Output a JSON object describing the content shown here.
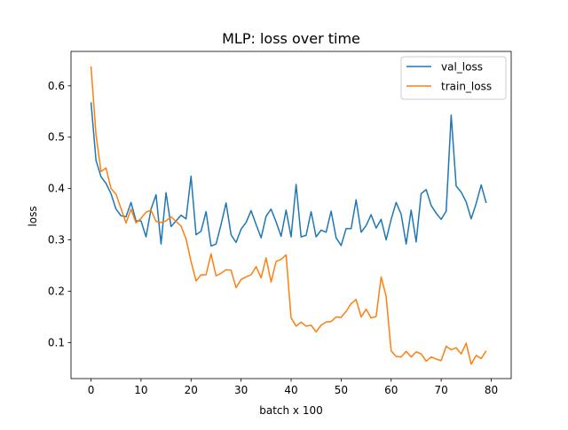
{
  "chart_data": {
    "type": "line",
    "title": "MLP: loss over time",
    "xlabel": "batch x 100",
    "ylabel": "loss",
    "xlim": [
      -4,
      84
    ],
    "ylim": [
      0.03,
      0.667
    ],
    "xticks": [
      0,
      10,
      20,
      30,
      40,
      50,
      60,
      70,
      80
    ],
    "yticks": [
      0.1,
      0.2,
      0.3,
      0.4,
      0.5,
      0.6
    ],
    "grid": false,
    "legend_position": "top-right",
    "x": [
      0,
      1,
      2,
      3,
      4,
      5,
      6,
      7,
      8,
      9,
      10,
      11,
      12,
      13,
      14,
      15,
      16,
      17,
      18,
      19,
      20,
      21,
      22,
      23,
      24,
      25,
      26,
      27,
      28,
      29,
      30,
      31,
      32,
      33,
      34,
      35,
      36,
      37,
      38,
      39,
      40,
      41,
      42,
      43,
      44,
      45,
      46,
      47,
      48,
      49,
      50,
      51,
      52,
      53,
      54,
      55,
      56,
      57,
      58,
      59,
      60,
      61,
      62,
      63,
      64,
      65,
      66,
      67,
      68,
      69,
      70,
      71,
      72,
      73,
      74,
      75,
      76,
      77,
      78,
      79
    ],
    "series": [
      {
        "name": "val_loss",
        "color": "#1f77b4",
        "values": [
          0.568,
          0.455,
          0.423,
          0.41,
          0.39,
          0.36,
          0.347,
          0.345,
          0.373,
          0.337,
          0.337,
          0.306,
          0.36,
          0.388,
          0.292,
          0.392,
          0.326,
          0.337,
          0.348,
          0.341,
          0.424,
          0.31,
          0.317,
          0.355,
          0.288,
          0.292,
          0.33,
          0.372,
          0.31,
          0.295,
          0.321,
          0.334,
          0.357,
          0.33,
          0.304,
          0.346,
          0.36,
          0.335,
          0.307,
          0.358,
          0.306,
          0.408,
          0.306,
          0.309,
          0.355,
          0.306,
          0.319,
          0.315,
          0.356,
          0.304,
          0.289,
          0.322,
          0.322,
          0.378,
          0.315,
          0.328,
          0.349,
          0.323,
          0.34,
          0.3,
          0.34,
          0.373,
          0.35,
          0.292,
          0.358,
          0.296,
          0.39,
          0.398,
          0.367,
          0.352,
          0.34,
          0.356,
          0.543,
          0.405,
          0.393,
          0.374,
          0.341,
          0.371,
          0.407,
          0.372
        ]
      },
      {
        "name": "train_loss",
        "color": "#ff7f0e",
        "values": [
          0.638,
          0.505,
          0.433,
          0.44,
          0.4,
          0.389,
          0.361,
          0.333,
          0.36,
          0.333,
          0.342,
          0.354,
          0.358,
          0.336,
          0.334,
          0.337,
          0.345,
          0.336,
          0.327,
          0.302,
          0.258,
          0.22,
          0.232,
          0.232,
          0.273,
          0.23,
          0.235,
          0.242,
          0.241,
          0.207,
          0.223,
          0.228,
          0.232,
          0.248,
          0.226,
          0.265,
          0.218,
          0.258,
          0.262,
          0.271,
          0.148,
          0.132,
          0.14,
          0.132,
          0.134,
          0.121,
          0.134,
          0.14,
          0.141,
          0.15,
          0.149,
          0.161,
          0.176,
          0.184,
          0.15,
          0.165,
          0.148,
          0.151,
          0.228,
          0.19,
          0.084,
          0.073,
          0.072,
          0.083,
          0.072,
          0.082,
          0.078,
          0.064,
          0.072,
          0.068,
          0.065,
          0.093,
          0.086,
          0.09,
          0.078,
          0.099,
          0.058,
          0.075,
          0.069,
          0.084
        ]
      }
    ]
  }
}
